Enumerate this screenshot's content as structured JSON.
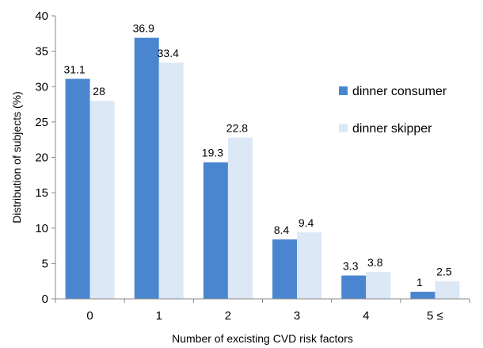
{
  "chart_data": {
    "type": "bar",
    "title": "",
    "xlabel": "Number of excisting CVD risk factors",
    "ylabel": "Distribution of subjects (%)",
    "categories": [
      "0",
      "1",
      "2",
      "3",
      "4",
      "5 ≤"
    ],
    "ylim": [
      0,
      40
    ],
    "yticks": [
      0,
      5,
      10,
      15,
      20,
      25,
      30,
      35,
      40
    ],
    "grid": false,
    "legend_position": "right",
    "series": [
      {
        "name": "dinner consumer",
        "color": "#4a86d0",
        "values": [
          31.1,
          36.9,
          19.3,
          8.4,
          3.3,
          1
        ]
      },
      {
        "name": "dinner skipper",
        "color": "#dce8f6",
        "values": [
          28,
          33.4,
          22.8,
          9.4,
          3.8,
          2.5
        ]
      }
    ]
  }
}
